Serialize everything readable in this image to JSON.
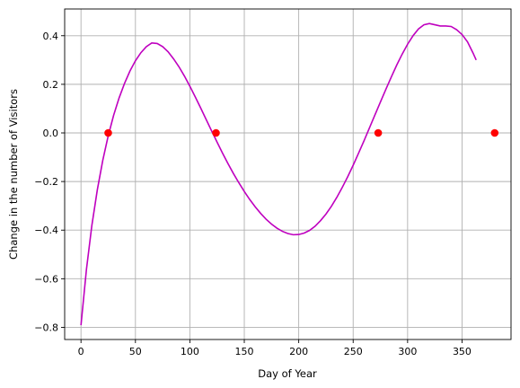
{
  "chart_data": {
    "type": "line",
    "title": "",
    "xlabel": "Day of Year",
    "ylabel": "Change in the number of Visitors",
    "xlim": [
      -15,
      395
    ],
    "ylim": [
      -0.85,
      0.51
    ],
    "grid": true,
    "x_ticks": [
      0,
      50,
      100,
      150,
      200,
      250,
      300,
      350
    ],
    "x_tick_labels": [
      "0",
      "50",
      "100",
      "150",
      "200",
      "250",
      "300",
      "350"
    ],
    "y_ticks": [
      -0.8,
      -0.6,
      -0.4,
      -0.2,
      0.0,
      0.2,
      0.4
    ],
    "y_tick_labels": [
      "−0.8",
      "−0.6",
      "−0.4",
      "−0.2",
      "0.0",
      "0.2",
      "0.4"
    ],
    "colors": {
      "line": "#bf00bf",
      "points": "#ff0000",
      "grid": "#b0b0b0"
    },
    "series": [
      {
        "type": "line",
        "x": [
          0,
          5,
          10,
          15,
          20,
          25,
          30,
          35,
          40,
          45,
          50,
          55,
          60,
          65,
          70,
          75,
          80,
          85,
          90,
          95,
          100,
          105,
          110,
          115,
          120,
          125,
          130,
          135,
          140,
          145,
          150,
          155,
          160,
          165,
          170,
          175,
          180,
          185,
          190,
          195,
          200,
          205,
          210,
          215,
          220,
          225,
          230,
          235,
          240,
          245,
          250,
          255,
          260,
          265,
          270,
          275,
          280,
          285,
          290,
          295,
          300,
          305,
          310,
          315,
          320,
          325,
          330,
          335,
          340,
          345,
          350,
          355,
          360,
          363
        ],
        "y": [
          -0.791,
          -0.562,
          -0.38,
          -0.234,
          -0.113,
          -0.012,
          0.073,
          0.144,
          0.204,
          0.255,
          0.297,
          0.33,
          0.355,
          0.37,
          0.368,
          0.355,
          0.334,
          0.305,
          0.272,
          0.234,
          0.192,
          0.148,
          0.102,
          0.055,
          0.008,
          -0.038,
          -0.083,
          -0.126,
          -0.167,
          -0.205,
          -0.241,
          -0.274,
          -0.304,
          -0.331,
          -0.355,
          -0.375,
          -0.392,
          -0.405,
          -0.414,
          -0.419,
          -0.418,
          -0.412,
          -0.401,
          -0.384,
          -0.361,
          -0.334,
          -0.302,
          -0.265,
          -0.224,
          -0.18,
          -0.133,
          -0.083,
          -0.032,
          0.021,
          0.074,
          0.127,
          0.179,
          0.23,
          0.279,
          0.324,
          0.365,
          0.4,
          0.428,
          0.445,
          0.45,
          0.445,
          0.44,
          0.44,
          0.438,
          0.425,
          0.405,
          0.375,
          0.33,
          0.3
        ]
      },
      {
        "type": "scatter",
        "x": [
          25,
          124,
          273,
          380
        ],
        "y": [
          0.0,
          0.0,
          0.0,
          0.0
        ]
      }
    ]
  }
}
